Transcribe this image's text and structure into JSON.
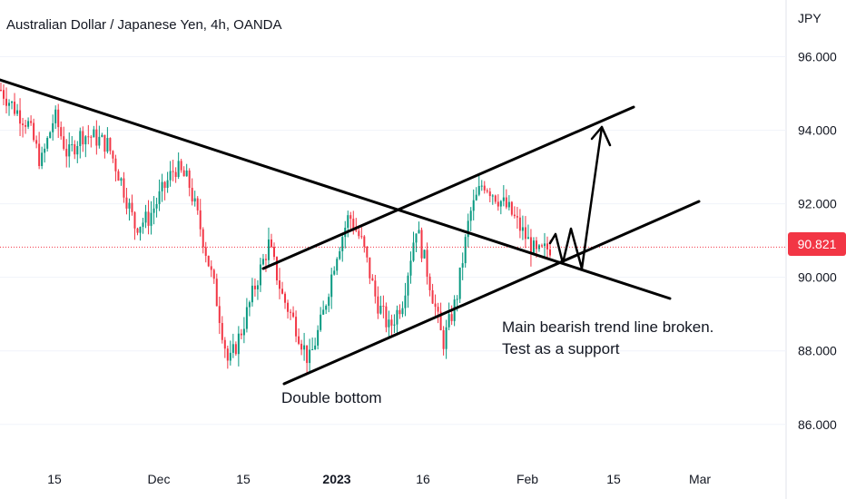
{
  "chart_data": {
    "type": "candlestick",
    "title": "Australian Dollar / Japanese Yen, 4h, OANDA",
    "currency": "JPY",
    "last_price": "90.821",
    "ylim": [
      85.6,
      97.0
    ],
    "y_ticks": [
      {
        "value": 96,
        "label": "96.000"
      },
      {
        "value": 94,
        "label": "94.000"
      },
      {
        "value": 92,
        "label": "92.000"
      },
      {
        "value": 90,
        "label": "90.000"
      },
      {
        "value": 88,
        "label": "88.000"
      },
      {
        "value": 86,
        "label": "86.000"
      }
    ],
    "x_ticks": [
      {
        "label": "15",
        "bold": false
      },
      {
        "label": "Dec",
        "bold": false
      },
      {
        "label": "15",
        "bold": false
      },
      {
        "label": "2023",
        "bold": true
      },
      {
        "label": "16",
        "bold": false
      },
      {
        "label": "Feb",
        "bold": false
      },
      {
        "label": "15",
        "bold": false
      },
      {
        "label": "Mar",
        "bold": false
      }
    ],
    "price_path": [
      95.1,
      94.6,
      94.2,
      93.1,
      94.4,
      93.3,
      93.9,
      93.8,
      93.6,
      92.6,
      91.4,
      91.6,
      92.3,
      93.0,
      92.6,
      91.2,
      89.6,
      87.6,
      88.6,
      89.8,
      90.9,
      89.5,
      88.7,
      87.7,
      88.9,
      90.6,
      91.7,
      90.9,
      89.4,
      88.6,
      89.4,
      91.4,
      89.9,
      88.2,
      89.4,
      91.7,
      92.6,
      92.2,
      91.8,
      91.2,
      90.6,
      90.821
    ],
    "annotations": [
      {
        "id": "double-bottom",
        "text": "Double bottom"
      },
      {
        "id": "trendline-note-1",
        "text": "Main bearish trend line broken."
      },
      {
        "id": "trendline-note-2",
        "text": "Test as a support"
      }
    ],
    "colors": {
      "up": "#089981",
      "down": "#f23645",
      "last_price": "#f23645",
      "lines": "#000000"
    },
    "grid": "horizontal"
  }
}
